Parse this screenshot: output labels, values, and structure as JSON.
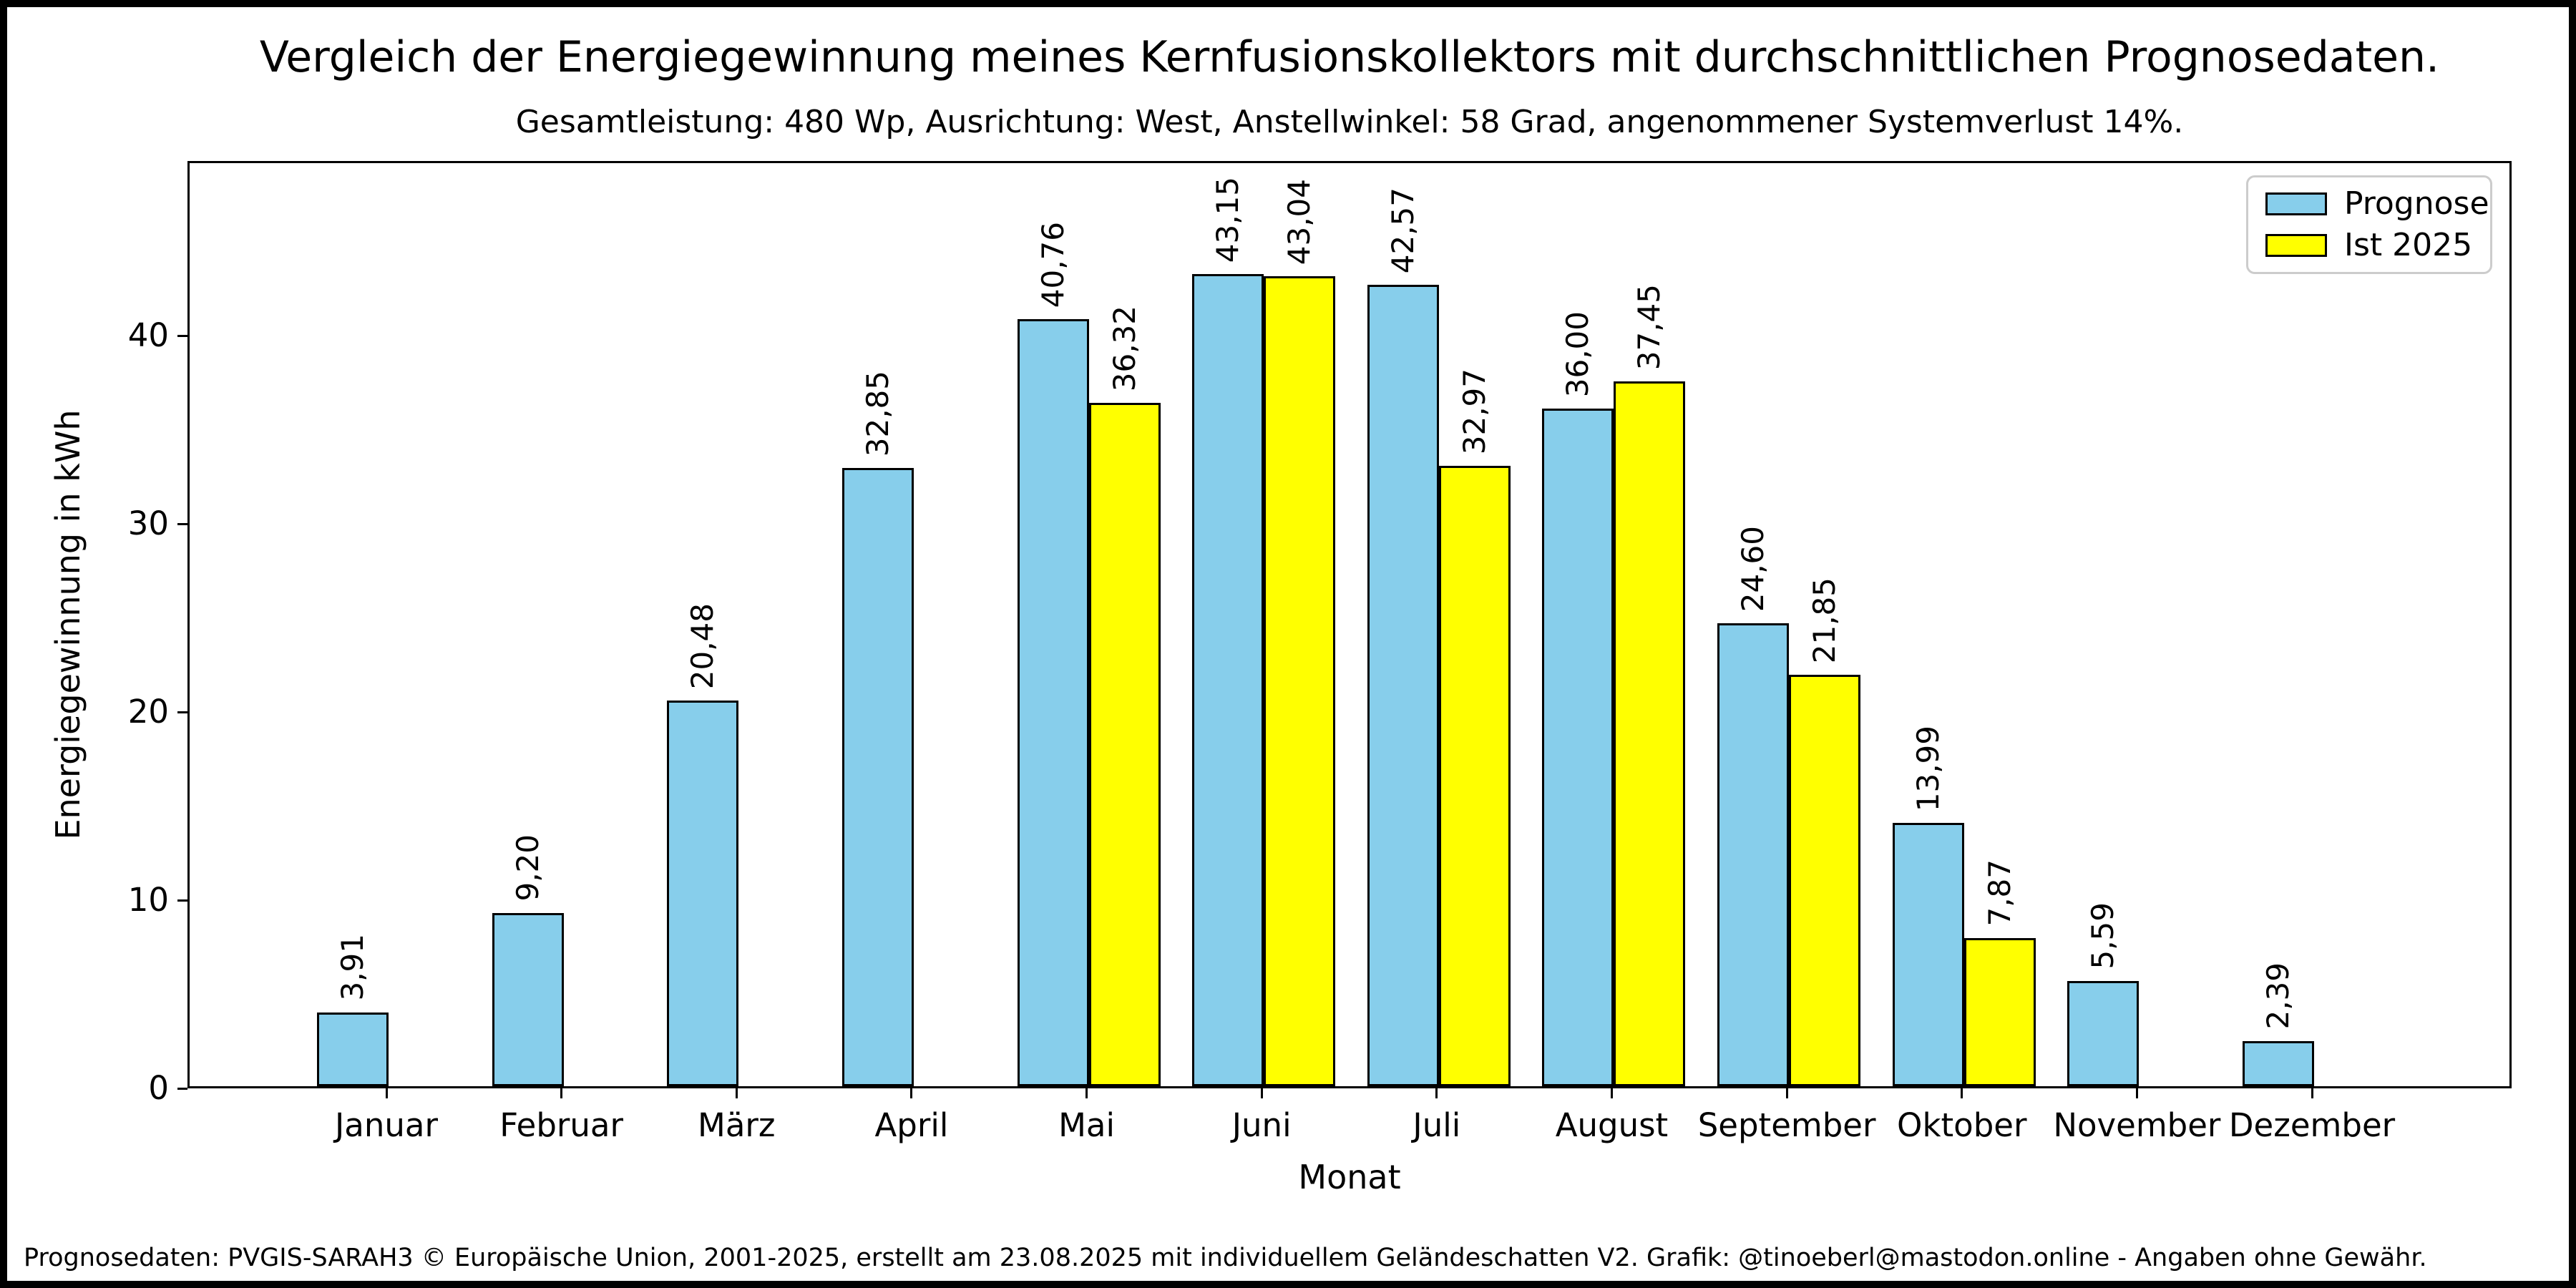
{
  "title": "Vergleich der Energiegewinnung meines Kernfusionskollektors mit durchschnittlichen Prognosedaten.",
  "subtitle": "Gesamtleistung: 480 Wp, Ausrichtung: West, Anstellwinkel: 58 Grad, angenommener Systemverlust 14%.",
  "footer": "Prognosedaten: PVGIS-SARAH3 © Europäische Union, 2001-2025, erstellt am 23.08.2025 mit individuellem Geländeschatten V2. Grafik: @tinoeberl@mastodon.online - Angaben ohne Gewähr.",
  "legend": {
    "items": [
      {
        "label": "Prognose",
        "color": "#87CEEB"
      },
      {
        "label": "Ist 2025",
        "color": "#FFFF00"
      }
    ]
  },
  "chart_data": {
    "type": "bar",
    "title": "Vergleich der Energiegewinnung meines Kernfusionskollektors mit durchschnittlichen Prognosedaten.",
    "subtitle": "Gesamtleistung: 480 Wp, Ausrichtung: West, Anstellwinkel: 58 Grad, angenommener Systemverlust 14%.",
    "xlabel": "Monat",
    "ylabel": "Energiegewinnung in kWh",
    "categories": [
      "Januar",
      "Februar",
      "März",
      "April",
      "Mai",
      "Juni",
      "Juli",
      "August",
      "September",
      "Oktober",
      "November",
      "Dezember"
    ],
    "series": [
      {
        "name": "Prognose",
        "color": "#87CEEB",
        "edge_color": "#000000",
        "values": [
          3.91,
          9.2,
          20.48,
          32.85,
          40.76,
          43.15,
          42.57,
          36.0,
          24.6,
          13.99,
          5.59,
          2.39
        ],
        "value_labels": [
          "3,91",
          "9,20",
          "20,48",
          "32,85",
          "40,76",
          "43,15",
          "42,57",
          "36,00",
          "24,60",
          "13,99",
          "5,59",
          "2,39"
        ]
      },
      {
        "name": "Ist 2025",
        "color": "#FFFF00",
        "edge_color": "#000000",
        "values": [
          null,
          null,
          null,
          null,
          36.32,
          43.04,
          32.97,
          37.45,
          21.85,
          7.87,
          null,
          null
        ],
        "value_labels": [
          null,
          null,
          null,
          null,
          "36,32",
          "43,04",
          "32,97",
          "37,45",
          "21,85",
          "7,87",
          null,
          null
        ]
      }
    ],
    "yticks": [
      0,
      10,
      20,
      30,
      40
    ],
    "ylim": [
      0,
      49.3
    ],
    "grid": false,
    "legend_position": "upper right",
    "bar_label_rotation": 90
  }
}
